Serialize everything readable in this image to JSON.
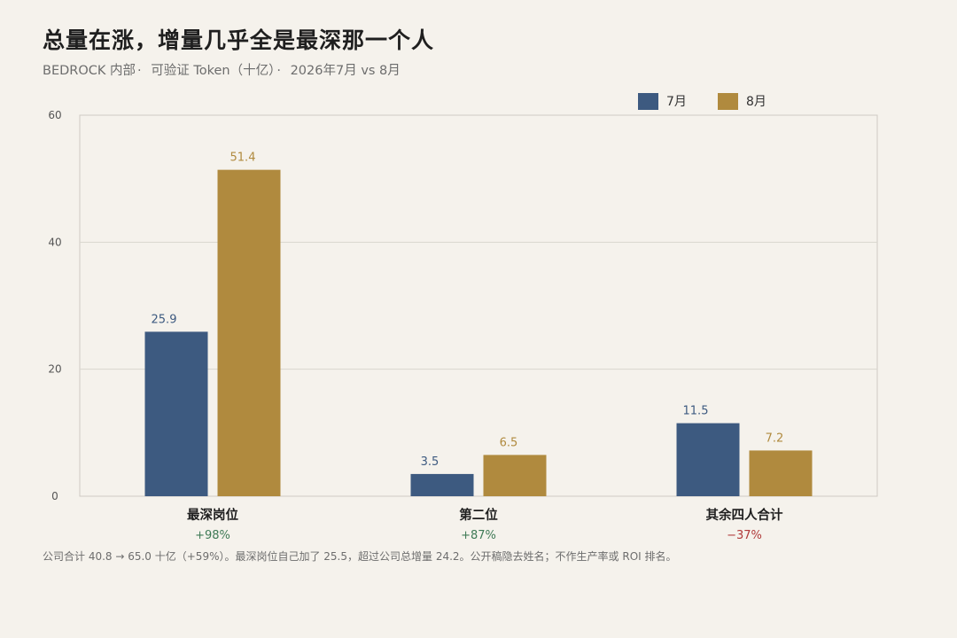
{
  "title": "总量在涨，增量几乎全是最深那一个人",
  "subtitle": {
    "org": "BEDROCK 内部",
    "metric": "可验证 Token（十亿）",
    "period": "2026年7月 vs 8月",
    "separator": "·"
  },
  "legend": [
    {
      "label": "7月",
      "color": "#3d5a80"
    },
    {
      "label": "8月",
      "color": "#b08a3e"
    }
  ],
  "footnote": "公司合计 40.8 → 65.0 十亿（+59%）。最深岗位自己加了 25.5，超过公司总增量 24.2。公开稿隐去姓名；不作生产率或 ROI 排名。",
  "colors": {
    "jul": "#3d5a80",
    "aug": "#b08a3e",
    "positive": "#3f7a56",
    "negative": "#b03a3a",
    "grid": "#d9d6cf",
    "axis": "#cfcbc3"
  },
  "chart_data": {
    "type": "bar",
    "categories": [
      "最深岗位",
      "第二位",
      "其余四人合计"
    ],
    "changes": [
      "+98%",
      "+87%",
      "−37%"
    ],
    "change_sign": [
      "positive",
      "positive",
      "negative"
    ],
    "series": [
      {
        "name": "7月",
        "values": [
          25.9,
          3.5,
          11.5
        ],
        "labels": [
          "25.9",
          "3.5",
          "11.5"
        ]
      },
      {
        "name": "8月",
        "values": [
          51.4,
          6.5,
          7.2
        ],
        "labels": [
          "51.4",
          "6.5",
          "7.2"
        ]
      }
    ],
    "ylim": [
      0,
      60
    ],
    "yticks": [
      "0",
      "20",
      "40",
      "60"
    ],
    "ytick_values": [
      0,
      20,
      40,
      60
    ],
    "grid": true,
    "legend_position": "top-right"
  }
}
